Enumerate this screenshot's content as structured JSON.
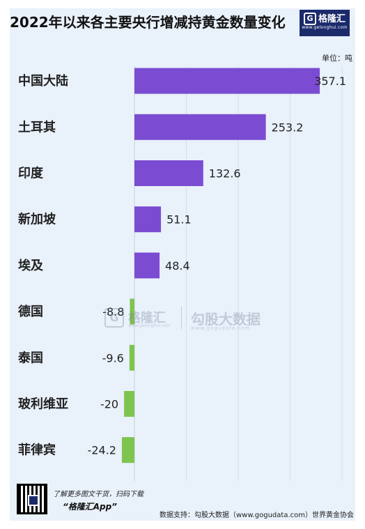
{
  "header": {
    "title": "2022年以来各主要央行增减持黄金数量变化",
    "logo_name": "格隆汇",
    "logo_url": "www.gelonghui.com",
    "logo_mark": "G"
  },
  "chart_data": {
    "type": "bar",
    "orientation": "horizontal",
    "title": "2022年以来各主要央行增减持黄金数量变化",
    "unit": "单位：吨",
    "categories": [
      "中国大陆",
      "土耳其",
      "印度",
      "新加坡",
      "埃及",
      "德国",
      "泰国",
      "玻利维亚",
      "菲律宾"
    ],
    "values": [
      357.1,
      253.2,
      132.6,
      51.1,
      48.4,
      -8.8,
      -9.6,
      -20,
      -24.2
    ],
    "value_labels": [
      "357.1",
      "253.2",
      "132.6",
      "51.1",
      "48.4",
      "-8.8",
      "-9.6",
      "-20",
      "-24.2"
    ],
    "xlim": [
      -25,
      400
    ],
    "gridlines": [
      0,
      100,
      200,
      300,
      400
    ],
    "grid": true,
    "colors": {
      "positive": "#7b4bd2",
      "negative": "#7ec44f"
    }
  },
  "watermark": {
    "mark": "G",
    "brand_a": "格隆汇",
    "brand_a_url": "www.gelonghui.com",
    "brand_b": "勾股大数据",
    "brand_b_url": "www.gogudata.com"
  },
  "footer": {
    "promo_line": "了解更多图文干货，扫码下载",
    "app_name": "“格隆汇App”",
    "source": "数据支持：勾股大数据（www.gogudata.com）世界黄金协会"
  }
}
